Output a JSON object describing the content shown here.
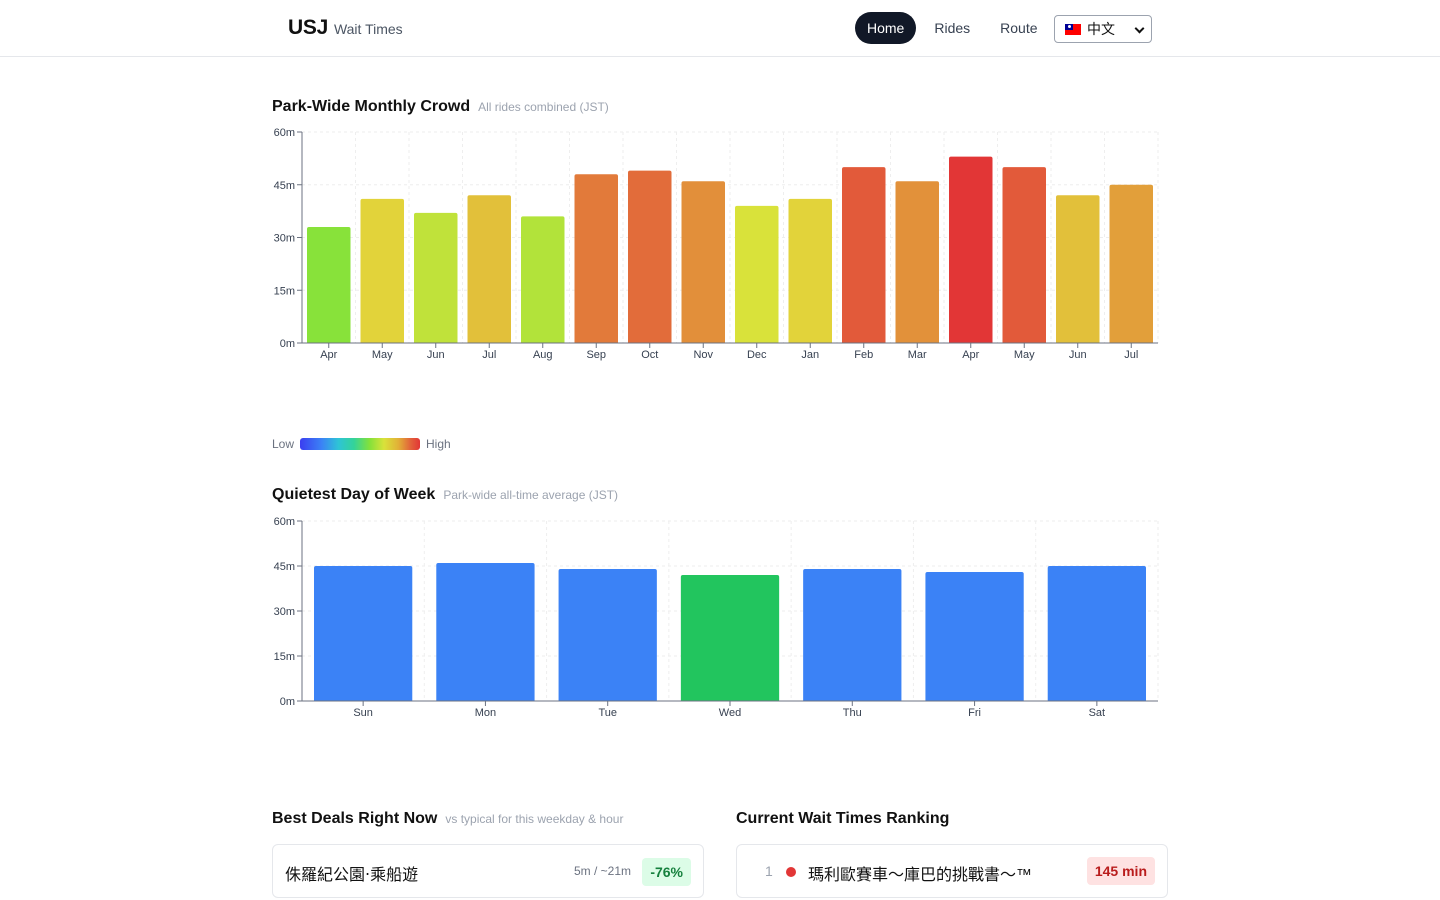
{
  "header": {
    "brand": "USJ",
    "brand_sub": "Wait Times",
    "nav": [
      {
        "label": "Home",
        "active": true
      },
      {
        "label": "Rides",
        "active": false
      },
      {
        "label": "Route",
        "active": false
      }
    ],
    "language": {
      "flag_icon": "taiwan-flag-icon",
      "label": "中文"
    }
  },
  "monthly": {
    "title": "Park-Wide Monthly Crowd",
    "subtitle": "All rides combined (JST)"
  },
  "legend": {
    "low": "Low",
    "high": "High"
  },
  "weekday": {
    "title": "Quietest Day of Week",
    "subtitle": "Park-wide all-time average (JST)"
  },
  "chart_data": [
    {
      "type": "bar",
      "title": "Park-Wide Monthly Crowd",
      "categories": [
        "Apr",
        "May",
        "Jun",
        "Jul",
        "Aug",
        "Sep",
        "Oct",
        "Nov",
        "Dec",
        "Jan",
        "Feb",
        "Mar",
        "Apr",
        "May",
        "Jun",
        "Jul"
      ],
      "values": [
        33,
        41,
        37,
        42,
        36,
        48,
        49,
        46,
        39,
        41,
        50,
        46,
        53,
        50,
        42,
        45
      ],
      "colors": [
        "#88e23a",
        "#e2d33a",
        "#c0e23a",
        "#e2c03a",
        "#b2e33a",
        "#e27a3a",
        "#e26c3a",
        "#e28f3a",
        "#d9e23a",
        "#e2d33a",
        "#e25a3a",
        "#e2913a",
        "#e23636",
        "#e25a3a",
        "#e2c03a",
        "#e29f3a"
      ],
      "yticks": [
        "0m",
        "15m",
        "30m",
        "45m",
        "60m"
      ],
      "ylim": [
        0,
        60
      ],
      "grid": true
    },
    {
      "type": "bar",
      "title": "Quietest Day of Week",
      "categories": [
        "Sun",
        "Mon",
        "Tue",
        "Wed",
        "Thu",
        "Fri",
        "Sat"
      ],
      "values": [
        45,
        46,
        44,
        42,
        44,
        43,
        45
      ],
      "colors": [
        "#3b82f6",
        "#3b82f6",
        "#3b82f6",
        "#22c55e",
        "#3b82f6",
        "#3b82f6",
        "#3b82f6"
      ],
      "yticks": [
        "0m",
        "15m",
        "30m",
        "45m",
        "60m"
      ],
      "ylim": [
        0,
        60
      ],
      "grid": true
    }
  ],
  "deals": {
    "title": "Best Deals Right Now",
    "subtitle": "vs typical for this weekday & hour",
    "items": [
      {
        "name": "侏羅紀公園‧乘船遊",
        "stat": "5m / ~21m",
        "badge": "-76%"
      }
    ]
  },
  "ranking": {
    "title": "Current Wait Times Ranking",
    "items": [
      {
        "rank": "1",
        "name": "瑪利歐賽車～庫巴的挑戰書～™",
        "wait": "145 min",
        "status_color": "#e23636"
      }
    ]
  }
}
